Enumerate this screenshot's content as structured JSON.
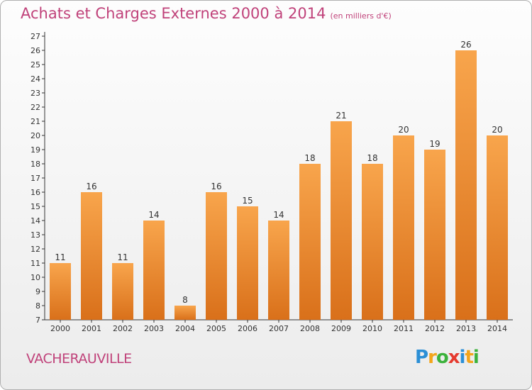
{
  "header": {
    "title": "Achats et Charges Externes 2000 à 2014",
    "unit": "(en milliers d'€)"
  },
  "footer": {
    "commune": "VACHERAUVILLE",
    "logo_letters": [
      "P",
      "r",
      "o",
      "x",
      "i",
      "t",
      "i"
    ],
    "logo_colors": [
      "#2b8fd6",
      "#f3a51a",
      "#3cb23c",
      "#e53a2f",
      "#2b8fd6",
      "#f3a51a",
      "#3cb23c"
    ]
  },
  "chart_data": {
    "type": "bar",
    "title": "Achats et Charges Externes 2000 à 2014",
    "subtitle": "(en milliers d'€)",
    "categories": [
      "2000",
      "2001",
      "2002",
      "2003",
      "2004",
      "2005",
      "2006",
      "2007",
      "2008",
      "2009",
      "2010",
      "2011",
      "2012",
      "2013",
      "2014"
    ],
    "values": [
      11,
      16,
      11,
      14,
      8,
      16,
      15,
      14,
      18,
      21,
      18,
      20,
      19,
      26,
      20
    ],
    "ylim": [
      7,
      27
    ],
    "yticks": [
      7,
      8,
      9,
      10,
      11,
      12,
      13,
      14,
      15,
      16,
      17,
      18,
      19,
      20,
      21,
      22,
      23,
      24,
      25,
      26,
      27
    ],
    "grid": false,
    "bar_color_top": "#f8a54c",
    "bar_color_bottom": "#d9701a"
  }
}
